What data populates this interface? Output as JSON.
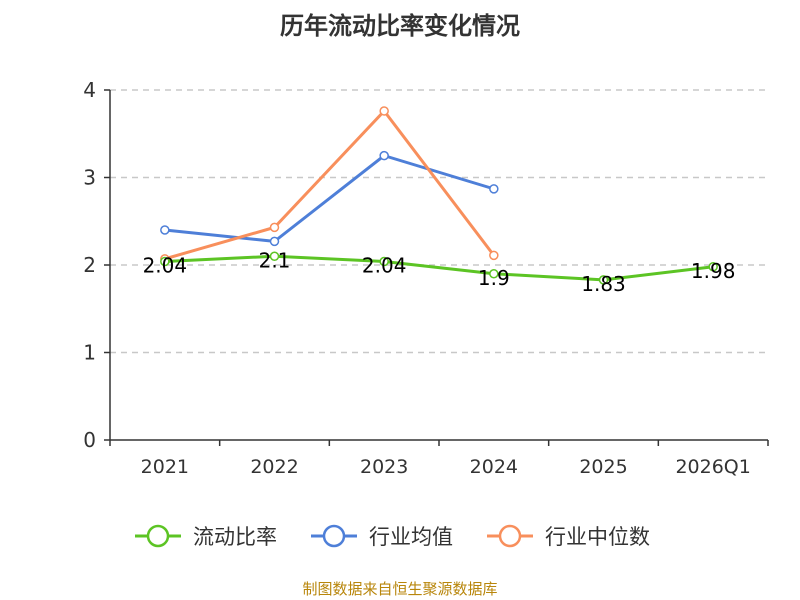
{
  "chart_data": {
    "type": "line",
    "title": "历年流动比率变化情况",
    "categories": [
      "2021",
      "2022",
      "2023",
      "2024",
      "2025",
      "2026Q1"
    ],
    "ylim": [
      0,
      4
    ],
    "yticks": [
      "0",
      "1",
      "2",
      "3",
      "4"
    ],
    "xlabel": "",
    "ylabel": "",
    "grid": true,
    "legend_position": "bottom",
    "series": [
      {
        "name": "流动比率",
        "color": "#5cc424",
        "values": [
          2.04,
          2.1,
          2.04,
          1.9,
          1.83,
          1.98
        ],
        "labels": [
          "2.04",
          "2.1",
          "2.04",
          "1.9",
          "1.83",
          "1.98"
        ]
      },
      {
        "name": "行业均值",
        "color": "#4e7fd8",
        "values": [
          2.4,
          2.27,
          3.25,
          2.87,
          null,
          null
        ]
      },
      {
        "name": "行业中位数",
        "color": "#f88f5c",
        "values": [
          2.07,
          2.43,
          3.76,
          2.11,
          null,
          null
        ]
      }
    ]
  },
  "footer": {
    "source": "制图数据来自恒生聚源数据库"
  }
}
